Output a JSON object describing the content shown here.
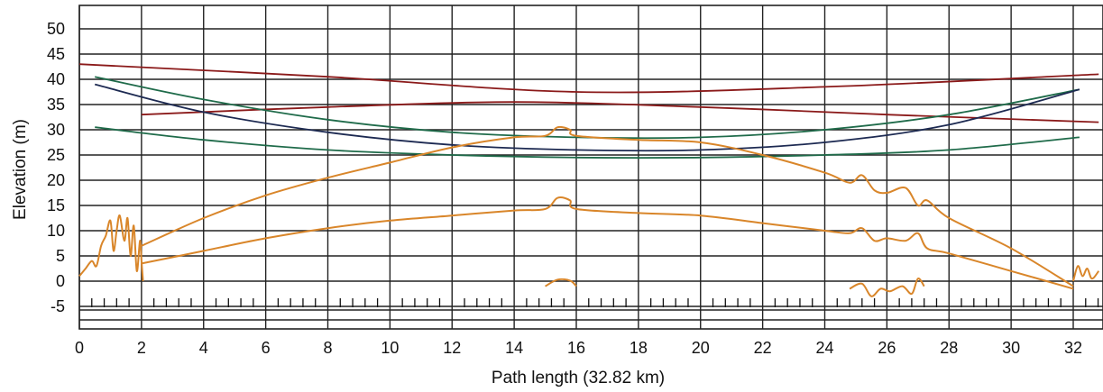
{
  "chart_data": {
    "type": "line",
    "xlabel": "Path length (32.82 km)",
    "ylabel": "Elevation (m)",
    "xlim": [
      0,
      32.82
    ],
    "ylim": [
      -7,
      55
    ],
    "x_ticks": [
      0,
      2,
      4,
      6,
      8,
      10,
      12,
      14,
      16,
      18,
      20,
      22,
      24,
      26,
      28,
      30,
      32
    ],
    "y_ticks": [
      -5,
      0,
      5,
      10,
      15,
      20,
      25,
      30,
      35,
      40,
      45,
      50
    ],
    "grid": true,
    "colors": {
      "terrain": "#d9862a",
      "earth_curve": "#5a2d12",
      "ray_red": "#8b1a1a",
      "ray_green": "#1f6b4a",
      "ray_navy": "#1d2a52"
    },
    "series": [
      {
        "key": "ray-red-upper",
        "color_key": "ray_red",
        "x": [
          0,
          8,
          16,
          24,
          32.82
        ],
        "y": [
          43,
          40.5,
          37.5,
          38.5,
          41
        ]
      },
      {
        "key": "ray-red-lower",
        "color_key": "ray_red",
        "x": [
          2,
          8,
          14,
          20,
          26,
          32.82
        ],
        "y": [
          33,
          34.5,
          35.5,
          34.5,
          33,
          31.5
        ]
      },
      {
        "key": "ray-green-upper",
        "color_key": "ray_green",
        "x": [
          0.5,
          4,
          8,
          12,
          16,
          20,
          24,
          28,
          32.2
        ],
        "y": [
          40.5,
          36,
          32,
          29.5,
          28.5,
          28.5,
          30,
          33,
          38
        ]
      },
      {
        "key": "ray-navy-upper",
        "color_key": "ray_navy",
        "x": [
          0.5,
          4,
          8,
          12,
          16,
          20,
          24,
          28,
          32.2
        ],
        "y": [
          39,
          33.5,
          29.5,
          27,
          26,
          26,
          27.5,
          31,
          38
        ]
      },
      {
        "key": "ray-green-lower",
        "color_key": "ray_green",
        "x": [
          0.5,
          4,
          8,
          12,
          16,
          20,
          24,
          28,
          32.2
        ],
        "y": [
          30.5,
          28,
          26,
          25,
          24.5,
          24.5,
          25,
          26,
          28.5
        ]
      },
      {
        "key": "terrain-upper",
        "color_key": "terrain",
        "x": [
          2,
          4,
          6,
          8,
          10,
          12,
          14,
          15,
          15.4,
          15.8,
          16,
          18,
          20,
          22,
          24,
          24.8,
          25.2,
          25.6,
          26,
          26.6,
          27,
          27.3,
          28,
          30,
          32
        ],
        "y": [
          7,
          12.5,
          17,
          20.5,
          23.5,
          26.5,
          28.5,
          28.8,
          30.5,
          30,
          28.8,
          28,
          27.5,
          25,
          21.5,
          19.5,
          21,
          18,
          17.5,
          18.5,
          15,
          16,
          12.5,
          6.5,
          -1
        ]
      },
      {
        "key": "terrain-lower",
        "color_key": "terrain",
        "x": [
          2,
          4,
          6,
          8,
          10,
          12,
          14,
          15,
          15.4,
          15.8,
          16,
          18,
          20,
          22,
          24,
          24.8,
          25.2,
          25.6,
          26,
          26.6,
          27,
          27.3,
          28,
          30,
          32
        ],
        "y": [
          3.5,
          6,
          8.5,
          10.5,
          12,
          13,
          14,
          14.3,
          16.5,
          16,
          14.3,
          13.5,
          13,
          11.5,
          10,
          9.5,
          10.5,
          8,
          8.5,
          8,
          9.5,
          6.5,
          5.5,
          2,
          -1.5
        ]
      },
      {
        "key": "terrain-bottom",
        "color_key": "terrain",
        "x": [
          15,
          15.4,
          15.8,
          16
        ],
        "y": [
          -1,
          0.3,
          0.1,
          -1
        ]
      },
      {
        "key": "terrain-bottom-right",
        "color_key": "terrain",
        "x": [
          24.8,
          25.2,
          25.5,
          25.8,
          26.1,
          26.5,
          26.8,
          27,
          27.2
        ],
        "y": [
          -1.5,
          -0.5,
          -3,
          -1.5,
          -2,
          -1,
          -2.5,
          0.5,
          -1
        ]
      },
      {
        "key": "terrain-left-cluster",
        "color_key": "terrain",
        "x": [
          0,
          0.2,
          0.4,
          0.55,
          0.7,
          0.85,
          1.0,
          1.1,
          1.2,
          1.3,
          1.45,
          1.55,
          1.65,
          1.75,
          1.85,
          1.95,
          2.0,
          2.05
        ],
        "y": [
          1,
          2.5,
          4,
          3,
          7,
          9,
          12,
          6,
          10,
          13,
          8,
          12.5,
          5,
          11,
          2,
          8,
          4,
          0
        ]
      },
      {
        "key": "terrain-right-cluster",
        "color_key": "terrain",
        "x": [
          32,
          32.15,
          32.3,
          32.45,
          32.6,
          32.82
        ],
        "y": [
          0,
          3,
          1,
          2.5,
          0.5,
          2
        ]
      }
    ]
  }
}
